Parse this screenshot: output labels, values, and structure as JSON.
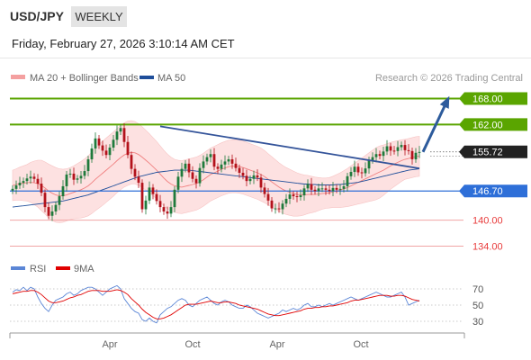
{
  "header": {
    "symbol": "USD/JPY",
    "timeframe": "WEEKLY"
  },
  "timestamp": "Friday, February 27, 2026 3:10:14 AM CET",
  "legend": {
    "ma20_label": "MA 20 + Bollinger Bands",
    "ma50_label": "MA 50",
    "copyright": "Research © 2026 Trading Central"
  },
  "rsi_legend": {
    "rsi_label": "RSI",
    "ma_label": "9MA"
  },
  "colors": {
    "resistance": "#5aa500",
    "support": "#2e6fd8",
    "pivot": "#e83a3a",
    "bollinger_fill": "#fde1e1",
    "ma20": "#f08080",
    "ma50": "#1f4e9a",
    "trendline": "#34549a",
    "rsi": "#5b86d6",
    "rsi_ma": "#e00000",
    "candle_up": "#1f7a3c",
    "candle_down": "#b3121b"
  },
  "chart_data": {
    "type": "candlestick",
    "ylim": [
      131,
      171
    ],
    "x_tick_labels": [
      "Apr",
      "Oct",
      "Apr",
      "Oct"
    ],
    "levels": {
      "resistance": [
        {
          "label": "168.00",
          "value": 168.0
        },
        {
          "label": "162.00",
          "value": 162.0
        }
      ],
      "last_price": {
        "label": "155.72",
        "value": 155.72
      },
      "pivot": {
        "label": "146.70",
        "value": 146.7
      },
      "support": [
        {
          "label": "140.00",
          "value": 140.0
        },
        {
          "label": "134.00",
          "value": 134.0
        }
      ]
    },
    "close": [
      147.2,
      148.0,
      148.6,
      149.0,
      149.6,
      150.0,
      149.5,
      148.4,
      146.3,
      143.0,
      141.0,
      142.0,
      143.5,
      145.5,
      147.8,
      150.5,
      150.7,
      149.3,
      149.6,
      150.2,
      151.3,
      154.0,
      156.5,
      158.8,
      157.2,
      156.0,
      155.0,
      156.7,
      158.5,
      160.4,
      161.2,
      158.0,
      155.0,
      151.8,
      150.0,
      148.6,
      142.5,
      144.5,
      147.5,
      146.0,
      144.4,
      143.0,
      142.0,
      141.5,
      143.0,
      147.0,
      150.0,
      151.8,
      153.0,
      151.0,
      149.5,
      148.5,
      152.0,
      153.5,
      154.5,
      155.2,
      152.3,
      151.8,
      152.8,
      153.5,
      154.0,
      153.0,
      152.0,
      150.9,
      150.2,
      149.0,
      149.5,
      150.3,
      149.8,
      147.5,
      146.0,
      144.5,
      142.7,
      142.7,
      142.5,
      143.8,
      144.9,
      145.9,
      145.5,
      145.3,
      145.7,
      147.3,
      148.3,
      147.0,
      146.7,
      147.3,
      147.3,
      147.0,
      146.7,
      147.4,
      147.0,
      147.2,
      147.8,
      150.1,
      151.1,
      152.3,
      151.0,
      150.8,
      151.9,
      153.8,
      154.5,
      155.2,
      154.8,
      155.8,
      157.0,
      156.0,
      155.9,
      156.8,
      157.3,
      156.1,
      155.9,
      154.0,
      155.5,
      155.7
    ],
    "ma20": [
      148.0,
      148.2,
      148.4,
      148.5,
      148.6,
      148.7,
      148.6,
      148.4,
      148.0,
      147.4,
      146.7,
      146.2,
      145.8,
      145.6,
      145.6,
      145.8,
      146.1,
      146.4,
      146.7,
      147.0,
      147.4,
      147.9,
      148.6,
      149.4,
      150.1,
      150.8,
      151.5,
      152.2,
      152.9,
      153.7,
      154.4,
      155.0,
      155.4,
      155.6,
      155.5,
      155.1,
      154.5,
      153.8,
      153.1,
      152.3,
      151.5,
      150.6,
      149.7,
      148.9,
      148.3,
      147.9,
      147.7,
      147.6,
      147.8,
      148.0,
      148.2,
      148.4,
      148.8,
      149.3,
      149.9,
      150.5,
      150.9,
      151.3,
      151.7,
      152.0,
      152.3,
      152.4,
      152.4,
      152.3,
      152.1,
      151.8,
      151.5,
      151.2,
      150.9,
      150.5,
      150.0,
      149.4,
      148.8,
      148.2,
      147.6,
      147.1,
      146.7,
      146.4,
      146.1,
      145.9,
      145.8,
      145.8,
      145.9,
      145.9,
      145.9,
      146.0,
      146.1,
      146.2,
      146.3,
      146.5,
      146.7,
      146.9,
      147.2,
      147.5,
      147.9,
      148.3,
      148.7,
      149.1,
      149.5,
      149.9,
      150.3,
      150.7,
      151.1,
      151.5,
      152.0,
      152.5,
      152.9,
      153.3,
      153.7,
      154.0,
      154.2,
      154.4,
      154.6,
      154.7
    ],
    "ma50": [
      143.0,
      143.1,
      143.2,
      143.3,
      143.4,
      143.5,
      143.6,
      143.7,
      143.8,
      143.9,
      144.0,
      144.1,
      144.2,
      144.3,
      144.4,
      144.6,
      144.8,
      145.0,
      145.2,
      145.4,
      145.6,
      145.8,
      146.1,
      146.4,
      146.7,
      147.0,
      147.3,
      147.6,
      147.9,
      148.2,
      148.5,
      148.8,
      149.1,
      149.4,
      149.7,
      150.0,
      150.2,
      150.4,
      150.6,
      150.8,
      151.0,
      151.1,
      151.2,
      151.3,
      151.4,
      151.5,
      151.5,
      151.5,
      151.5,
      151.5,
      151.4,
      151.3,
      151.2,
      151.1,
      151.0,
      150.9,
      150.8,
      150.7,
      150.6,
      150.5,
      150.4,
      150.3,
      150.2,
      150.1,
      150.0,
      149.9,
      149.8,
      149.7,
      149.6,
      149.5,
      149.4,
      149.3,
      149.2,
      149.1,
      149.0,
      148.9,
      148.8,
      148.7,
      148.6,
      148.5,
      148.4,
      148.3,
      148.3,
      148.2,
      148.2,
      148.1,
      148.1,
      148.1,
      148.1,
      148.1,
      148.2,
      148.2,
      148.3,
      148.4,
      148.5,
      148.6,
      148.7,
      148.9,
      149.1,
      149.3,
      149.5,
      149.7,
      149.9,
      150.1,
      150.3,
      150.5,
      150.7,
      150.9,
      151.1,
      151.3,
      151.5,
      151.6,
      151.7,
      151.8
    ],
    "bollinger_width": [
      3.5,
      3.6,
      3.8,
      4.0,
      4.2,
      4.6,
      5.0,
      5.4,
      5.8,
      6.0,
      6.2,
      6.3,
      6.3,
      6.2,
      6.1,
      6.0,
      6.0,
      6.1,
      6.3,
      6.5,
      6.7,
      6.9,
      7.1,
      7.2,
      7.3,
      7.4,
      7.4,
      7.4,
      7.4,
      7.4,
      7.4,
      7.4,
      7.4,
      7.3,
      7.2,
      7.1,
      7.0,
      6.9,
      6.8,
      6.7,
      6.6,
      6.5,
      6.4,
      6.3,
      6.2,
      6.1,
      6.1,
      6.1,
      6.1,
      6.1,
      6.1,
      6.1,
      6.1,
      6.1,
      6.1,
      6.1,
      6.1,
      6.1,
      6.1,
      6.1,
      6.1,
      6.1,
      6.1,
      6.1,
      6.1,
      6.1,
      6.1,
      6.1,
      6.1,
      6.1,
      6.0,
      5.9,
      5.8,
      5.7,
      5.6,
      5.5,
      5.4,
      5.3,
      5.2,
      5.0,
      4.8,
      4.6,
      4.4,
      4.2,
      4.0,
      3.8,
      3.6,
      3.5,
      3.5,
      3.6,
      3.8,
      4.0,
      4.2,
      4.4,
      4.6,
      4.8,
      5.0,
      5.2,
      5.4,
      5.6,
      5.8,
      6.0,
      6.0,
      5.8,
      5.6,
      5.4,
      5.2,
      5.0,
      4.8,
      4.6,
      4.6,
      4.6,
      4.6,
      4.6
    ],
    "trendline": {
      "start_index": 41,
      "start_value": 161.6,
      "end_index": 113,
      "end_value": 151.9
    },
    "projection": {
      "start_index": 114,
      "start_value": 155.7,
      "end_index": 121,
      "end_value": 168.0
    },
    "rsi": {
      "ylim": [
        20,
        80
      ],
      "tick_labels": [
        "70",
        "50",
        "30"
      ],
      "tick_values": [
        70,
        50,
        30
      ],
      "values": [
        66,
        69,
        68,
        72,
        68,
        72,
        70,
        60,
        52,
        46,
        42,
        50,
        56,
        58,
        60,
        64,
        66,
        62,
        64,
        68,
        70,
        72,
        72,
        70,
        66,
        62,
        66,
        70,
        72,
        74,
        70,
        58,
        52,
        46,
        42,
        40,
        32,
        30,
        34,
        30,
        28,
        38,
        42,
        46,
        48,
        52,
        56,
        58,
        56,
        50,
        48,
        52,
        56,
        58,
        60,
        56,
        52,
        50,
        54,
        56,
        54,
        50,
        48,
        46,
        46,
        50,
        48,
        44,
        40,
        38,
        36,
        34,
        36,
        38,
        40,
        44,
        42,
        44,
        46,
        44,
        46,
        50,
        52,
        48,
        48,
        50,
        48,
        50,
        52,
        50,
        52,
        54,
        56,
        58,
        60,
        58,
        56,
        58,
        60,
        62,
        64,
        66,
        64,
        62,
        60,
        60,
        62,
        64,
        66,
        60,
        50,
        52,
        54,
        56
      ],
      "ma": [
        64,
        65,
        66,
        67,
        67,
        68,
        68,
        66,
        63,
        59,
        55,
        53,
        53,
        54,
        55,
        57,
        59,
        60,
        62,
        63,
        65,
        67,
        68,
        68,
        68,
        67,
        67,
        67,
        68,
        69,
        68,
        66,
        63,
        58,
        54,
        50,
        45,
        41,
        38,
        35,
        33,
        33,
        34,
        36,
        38,
        41,
        44,
        47,
        50,
        51,
        51,
        51,
        52,
        53,
        54,
        55,
        54,
        53,
        53,
        54,
        54,
        53,
        52,
        50,
        49,
        48,
        47,
        46,
        45,
        43,
        41,
        39,
        38,
        37,
        37,
        38,
        39,
        40,
        41,
        42,
        43,
        45,
        46,
        46,
        47,
        47,
        48,
        48,
        49,
        49,
        50,
        51,
        52,
        53,
        55,
        56,
        56,
        57,
        58,
        59,
        60,
        61,
        62,
        62,
        62,
        61,
        61,
        62,
        62,
        61,
        59,
        57,
        56,
        55
      ]
    }
  }
}
